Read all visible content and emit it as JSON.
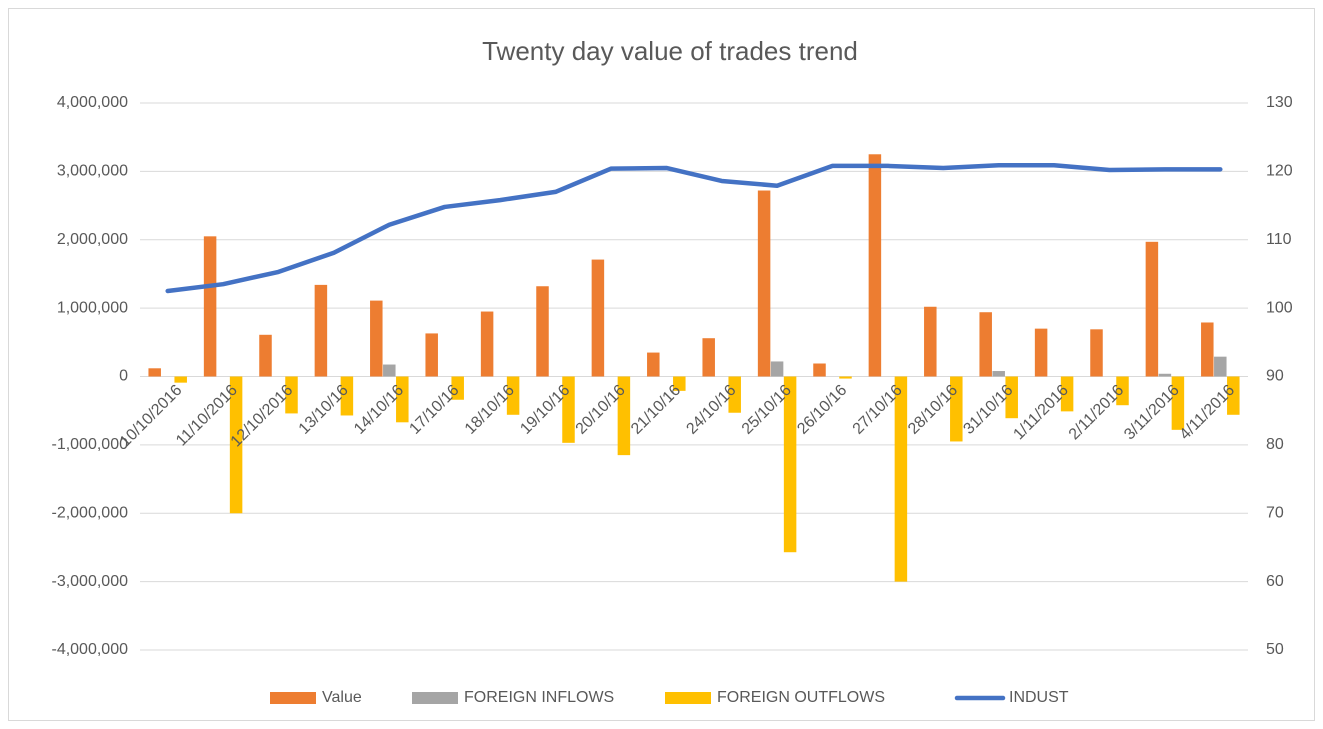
{
  "chart_data": {
    "type": "bar-line",
    "title": "Twenty day value of trades trend",
    "categories": [
      "10/10/2016",
      "11/10/2016",
      "12/10/2016",
      "13/10/16",
      "14/10/16",
      "17/10/16",
      "18/10/16",
      "19/10/16",
      "20/10/16",
      "21/10/16",
      "24/10/16",
      "25/10/16",
      "26/10/16",
      "27/10/16",
      "28/10/16",
      "31/10/16",
      "1/11/2016",
      "2/11/2016",
      "3/11/2016",
      "4/11/2016"
    ],
    "series": [
      {
        "name": "Value",
        "type": "bar",
        "color": "#ed7d31",
        "values": [
          120000,
          2050000,
          610000,
          1340000,
          1110000,
          630000,
          950000,
          1320000,
          1710000,
          350000,
          560000,
          2720000,
          190000,
          3250000,
          1020000,
          940000,
          700000,
          690000,
          1970000,
          790000
        ]
      },
      {
        "name": "FOREIGN INFLOWS",
        "type": "bar",
        "color": "#a5a5a5",
        "values": [
          0,
          0,
          0,
          0,
          175000,
          0,
          0,
          0,
          0,
          0,
          0,
          220000,
          0,
          0,
          0,
          80000,
          0,
          0,
          40000,
          290000
        ]
      },
      {
        "name": "FOREIGN OUTFLOWS",
        "type": "bar",
        "color": "#ffc000",
        "values": [
          -90000,
          -2000000,
          -540000,
          -570000,
          -670000,
          -340000,
          -560000,
          -970000,
          -1150000,
          -210000,
          -530000,
          -2570000,
          -30000,
          -3000000,
          -950000,
          -610000,
          -510000,
          -420000,
          -780000,
          -560000
        ]
      },
      {
        "name": "INDUST",
        "type": "line",
        "axis": "y2",
        "color": "#4472c4",
        "values": [
          102.5,
          103.5,
          105.3,
          108.1,
          112.2,
          114.8,
          115.8,
          117,
          120.4,
          120.5,
          118.6,
          117.9,
          120.8,
          120.8,
          120.5,
          120.9,
          120.9,
          120.2,
          120.3,
          120.3
        ]
      }
    ],
    "ylim": [
      -4000000,
      4000000
    ],
    "yticks": [
      {
        "value": -4000000,
        "label": "-4,000,000"
      },
      {
        "value": -3000000,
        "label": "-3,000,000"
      },
      {
        "value": -2000000,
        "label": "-2,000,000"
      },
      {
        "value": -1000000,
        "label": "-1,000,000"
      },
      0,
      {
        "value": 1000000,
        "label": "1,000,000"
      },
      {
        "value": 2000000,
        "label": "2,000,000"
      },
      {
        "value": 3000000,
        "label": "3,000,000"
      },
      {
        "value": 4000000,
        "label": "4,000,000"
      }
    ],
    "y2lim": [
      50,
      130
    ],
    "y2ticks": [
      50,
      60,
      70,
      80,
      90,
      100,
      110,
      120,
      130
    ],
    "grid": true,
    "legend": "bottom"
  }
}
